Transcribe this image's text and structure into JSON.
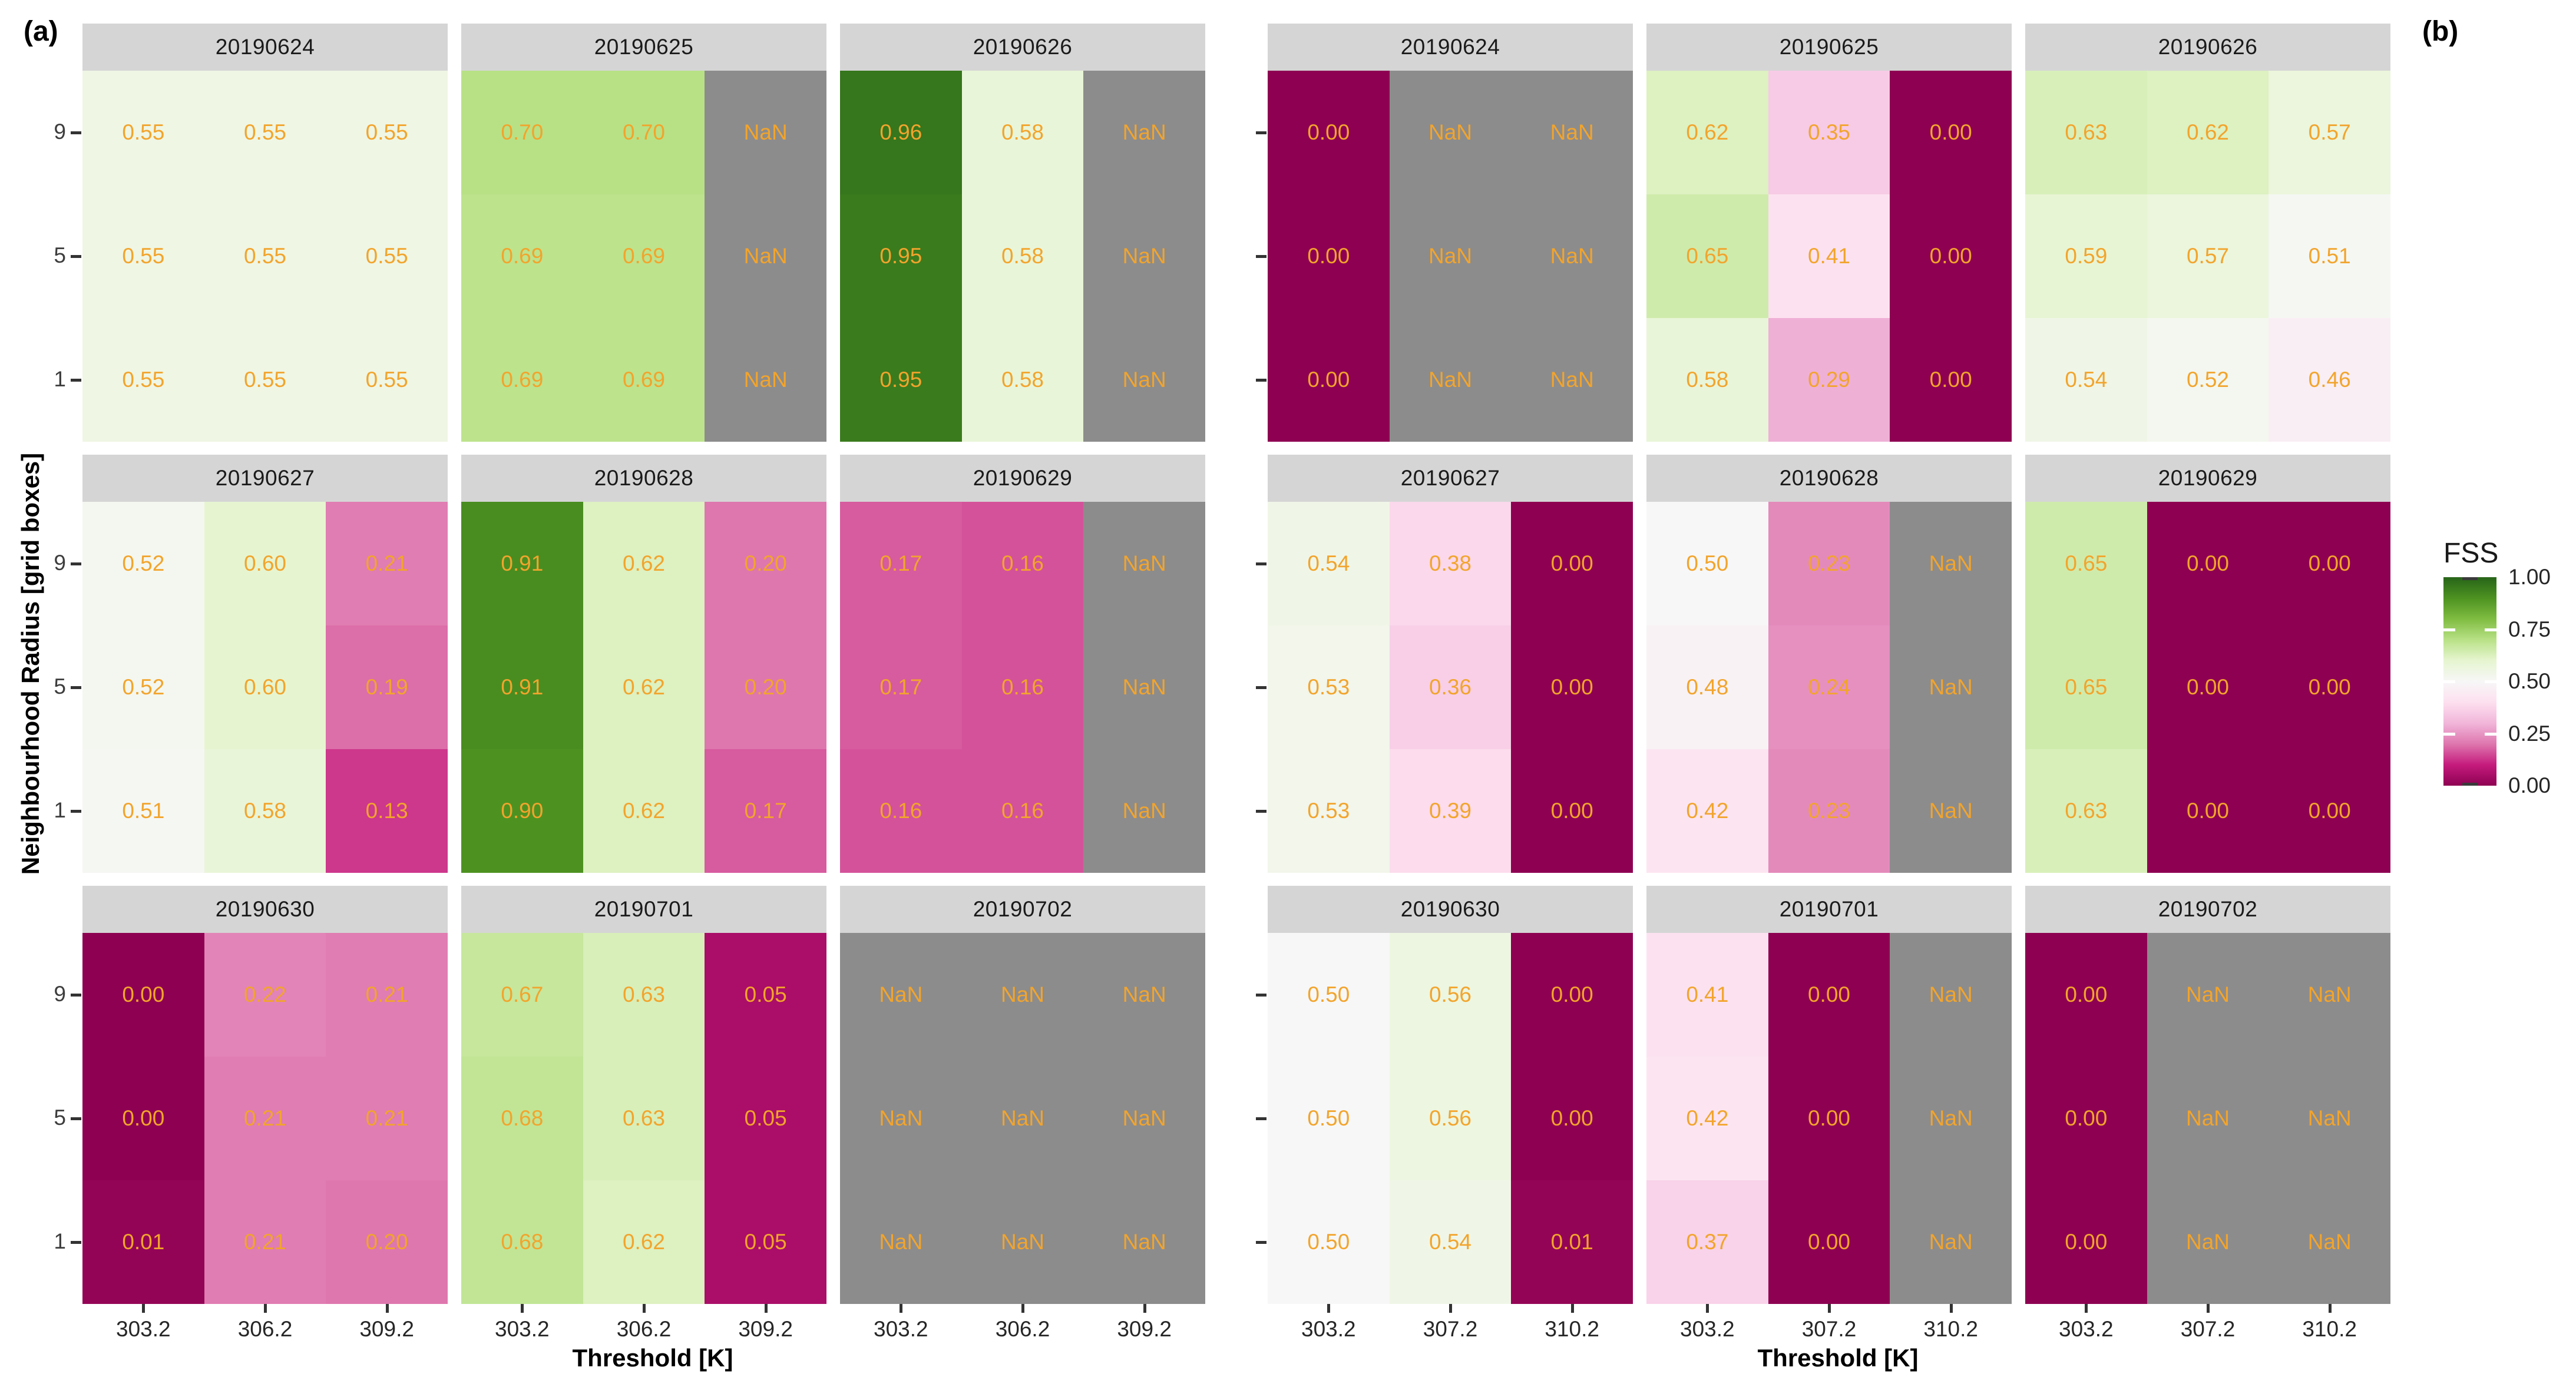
{
  "chart_data": {
    "type": "heatmap",
    "facet_variable": "date",
    "x": {
      "label": "Threshold [K]"
    },
    "y": {
      "label": "Neighbourhood Radius [grid boxes]",
      "ticks": [
        "9",
        "5",
        "1"
      ]
    },
    "legend": {
      "title": "FSS",
      "ticks": [
        "1.00",
        "0.75",
        "0.50",
        "0.25",
        "0.00"
      ],
      "range": [
        0,
        1
      ]
    },
    "row_order_note": "rows listed top-to-bottom correspond to radius 9, 5, 1",
    "panels": [
      {
        "tag": "(a)",
        "x_ticks": [
          "303.2",
          "306.2",
          "309.2"
        ],
        "facets": [
          {
            "date": "20190624",
            "rows": [
              [
                "0.55",
                "0.55",
                "0.55"
              ],
              [
                "0.55",
                "0.55",
                "0.55"
              ],
              [
                "0.55",
                "0.55",
                "0.55"
              ]
            ]
          },
          {
            "date": "20190625",
            "rows": [
              [
                "0.70",
                "0.70",
                "NaN"
              ],
              [
                "0.69",
                "0.69",
                "NaN"
              ],
              [
                "0.69",
                "0.69",
                "NaN"
              ]
            ]
          },
          {
            "date": "20190626",
            "rows": [
              [
                "0.96",
                "0.58",
                "NaN"
              ],
              [
                "0.95",
                "0.58",
                "NaN"
              ],
              [
                "0.95",
                "0.58",
                "NaN"
              ]
            ]
          },
          {
            "date": "20190627",
            "rows": [
              [
                "0.52",
                "0.60",
                "0.21"
              ],
              [
                "0.52",
                "0.60",
                "0.19"
              ],
              [
                "0.51",
                "0.58",
                "0.13"
              ]
            ]
          },
          {
            "date": "20190628",
            "rows": [
              [
                "0.91",
                "0.62",
                "0.20"
              ],
              [
                "0.91",
                "0.62",
                "0.20"
              ],
              [
                "0.90",
                "0.62",
                "0.17"
              ]
            ]
          },
          {
            "date": "20190629",
            "rows": [
              [
                "0.17",
                "0.16",
                "NaN"
              ],
              [
                "0.17",
                "0.16",
                "NaN"
              ],
              [
                "0.16",
                "0.16",
                "NaN"
              ]
            ]
          },
          {
            "date": "20190630",
            "rows": [
              [
                "0.00",
                "0.22",
                "0.21"
              ],
              [
                "0.00",
                "0.21",
                "0.21"
              ],
              [
                "0.01",
                "0.21",
                "0.20"
              ]
            ]
          },
          {
            "date": "20190701",
            "rows": [
              [
                "0.67",
                "0.63",
                "0.05"
              ],
              [
                "0.68",
                "0.63",
                "0.05"
              ],
              [
                "0.68",
                "0.62",
                "0.05"
              ]
            ]
          },
          {
            "date": "20190702",
            "rows": [
              [
                "NaN",
                "NaN",
                "NaN"
              ],
              [
                "NaN",
                "NaN",
                "NaN"
              ],
              [
                "NaN",
                "NaN",
                "NaN"
              ]
            ]
          }
        ]
      },
      {
        "tag": "(b)",
        "x_ticks": [
          "303.2",
          "307.2",
          "310.2"
        ],
        "facets": [
          {
            "date": "20190624",
            "rows": [
              [
                "0.00",
                "NaN",
                "NaN"
              ],
              [
                "0.00",
                "NaN",
                "NaN"
              ],
              [
                "0.00",
                "NaN",
                "NaN"
              ]
            ]
          },
          {
            "date": "20190625",
            "rows": [
              [
                "0.62",
                "0.35",
                "0.00"
              ],
              [
                "0.65",
                "0.41",
                "0.00"
              ],
              [
                "0.58",
                "0.29",
                "0.00"
              ]
            ]
          },
          {
            "date": "20190626",
            "rows": [
              [
                "0.63",
                "0.62",
                "0.57"
              ],
              [
                "0.59",
                "0.57",
                "0.51"
              ],
              [
                "0.54",
                "0.52",
                "0.46"
              ]
            ]
          },
          {
            "date": "20190627",
            "rows": [
              [
                "0.54",
                "0.38",
                "0.00"
              ],
              [
                "0.53",
                "0.36",
                "0.00"
              ],
              [
                "0.53",
                "0.39",
                "0.00"
              ]
            ]
          },
          {
            "date": "20190628",
            "rows": [
              [
                "0.50",
                "0.23",
                "NaN"
              ],
              [
                "0.48",
                "0.24",
                "NaN"
              ],
              [
                "0.42",
                "0.23",
                "NaN"
              ]
            ]
          },
          {
            "date": "20190629",
            "rows": [
              [
                "0.65",
                "0.00",
                "0.00"
              ],
              [
                "0.65",
                "0.00",
                "0.00"
              ],
              [
                "0.63",
                "0.00",
                "0.00"
              ]
            ]
          },
          {
            "date": "20190630",
            "rows": [
              [
                "0.50",
                "0.56",
                "0.00"
              ],
              [
                "0.50",
                "0.56",
                "0.00"
              ],
              [
                "0.50",
                "0.54",
                "0.01"
              ]
            ]
          },
          {
            "date": "20190701",
            "rows": [
              [
                "0.41",
                "0.00",
                "NaN"
              ],
              [
                "0.42",
                "0.00",
                "NaN"
              ],
              [
                "0.37",
                "0.00",
                "NaN"
              ]
            ]
          },
          {
            "date": "20190702",
            "rows": [
              [
                "0.00",
                "NaN",
                "NaN"
              ],
              [
                "0.00",
                "NaN",
                "NaN"
              ],
              [
                "0.00",
                "NaN",
                "NaN"
              ]
            ]
          }
        ]
      }
    ]
  },
  "colors": {
    "piyg": [
      "#8E0152",
      "#C51B7D",
      "#DE77AE",
      "#F1B6DA",
      "#FDE0EF",
      "#F7F7F7",
      "#E6F5D0",
      "#B8E186",
      "#7FBC41",
      "#4D9221",
      "#276419"
    ],
    "nan": "#8C8C8C",
    "value_text": "#F2A42C",
    "strip_bg": "#D5D5D5",
    "tick_mark": "#333333"
  }
}
